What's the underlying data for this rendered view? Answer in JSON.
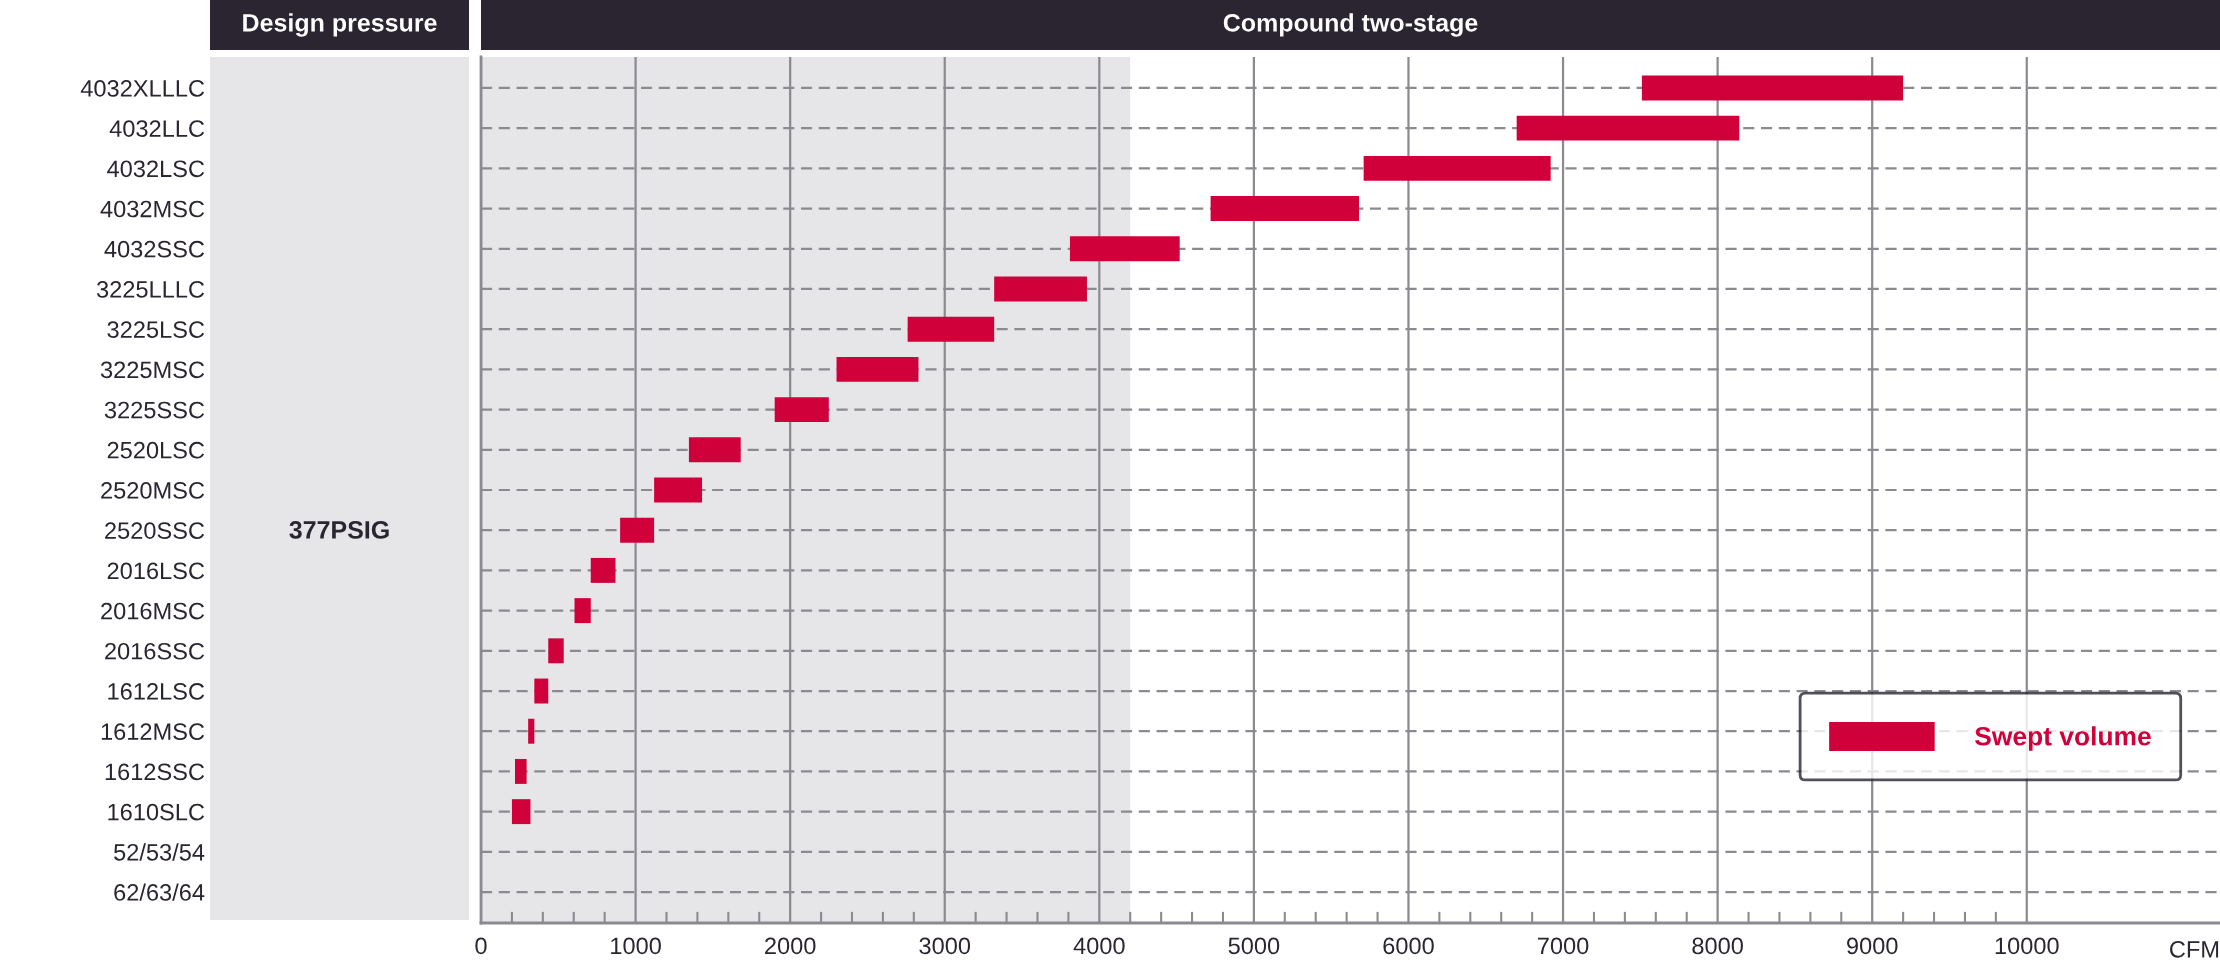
{
  "chart_data": {
    "type": "bar",
    "orientation": "horizontal",
    "xlabel": "CFM",
    "annotations": [
      "Design pressure",
      "Compound two-stage",
      "377PSIG"
    ],
    "categories": [
      "4032XLLLC",
      "4032LLC",
      "4032LSC",
      "4032MSC",
      "4032SSC",
      "3225LLLC",
      "3225LSC",
      "3225MSC",
      "3225SSC",
      "2520LSC",
      "2520MSC",
      "2520SSC",
      "2016LSC",
      "2016MSC",
      "2016SSC",
      "1612LSC",
      "1612MSC",
      "1612SSC",
      "1610SLC",
      "52/53/54",
      "62/63/64"
    ],
    "series": [
      {
        "name": "Swept volume",
        "color": "#d0003a",
        "base": [
          7510,
          6700,
          5710,
          4720,
          3810,
          3320,
          2760,
          2300,
          1900,
          1345,
          1120,
          900,
          710,
          605,
          435,
          345,
          305,
          220,
          200,
          null,
          null
        ],
        "values": [
          1690,
          1440,
          1210,
          960,
          710,
          600,
          560,
          530,
          350,
          335,
          310,
          220,
          160,
          105,
          100,
          90,
          40,
          75,
          120,
          null,
          null
        ]
      }
    ],
    "bands": [
      {
        "axis": "x",
        "from": 0,
        "to": 4200,
        "color": "#e6e6e9"
      }
    ],
    "xlim": [
      0,
      11250
    ],
    "xticks": [
      0,
      {
        "value": 200,
        "label": null
      },
      {
        "value": 400,
        "label": null
      },
      {
        "value": 600,
        "label": null
      },
      {
        "value": 800,
        "label": null
      },
      1000,
      {
        "value": 1200,
        "label": null
      },
      {
        "value": 1400,
        "label": null
      },
      {
        "value": 1600,
        "label": null
      },
      {
        "value": 1800,
        "label": null
      },
      2000,
      {
        "value": 2200,
        "label": null
      },
      {
        "value": 2400,
        "label": null
      },
      {
        "value": 2600,
        "label": null
      },
      {
        "value": 2800,
        "label": null
      },
      3000,
      {
        "value": 3200,
        "label": null
      },
      {
        "value": 3400,
        "label": null
      },
      {
        "value": 3600,
        "label": null
      },
      {
        "value": 3800,
        "label": null
      },
      4000,
      {
        "value": 4200,
        "label": null
      },
      {
        "value": 4400,
        "label": null
      },
      {
        "value": 4600,
        "label": null
      },
      {
        "value": 4800,
        "label": null
      },
      5000,
      {
        "value": 5200,
        "label": null
      },
      {
        "value": 5400,
        "label": null
      },
      {
        "value": 5600,
        "label": null
      },
      {
        "value": 5800,
        "label": null
      },
      6000,
      {
        "value": 6200,
        "label": null
      },
      {
        "value": 6400,
        "label": null
      },
      {
        "value": 6600,
        "label": null
      },
      {
        "value": 6800,
        "label": null
      },
      7000,
      {
        "value": 7200,
        "label": null
      },
      {
        "value": 7400,
        "label": null
      },
      {
        "value": 7600,
        "label": null
      },
      {
        "value": 7800,
        "label": null
      },
      8000,
      {
        "value": 8200,
        "label": null
      },
      {
        "value": 8400,
        "label": null
      },
      {
        "value": 8600,
        "label": null
      },
      {
        "value": 8800,
        "label": null
      },
      9000,
      {
        "value": 9200,
        "label": null
      },
      {
        "value": 9400,
        "label": null
      },
      {
        "value": 9600,
        "label": null
      },
      {
        "value": 9800,
        "label": null
      },
      10000
    ],
    "grid": true,
    "legend": "bottom right"
  }
}
